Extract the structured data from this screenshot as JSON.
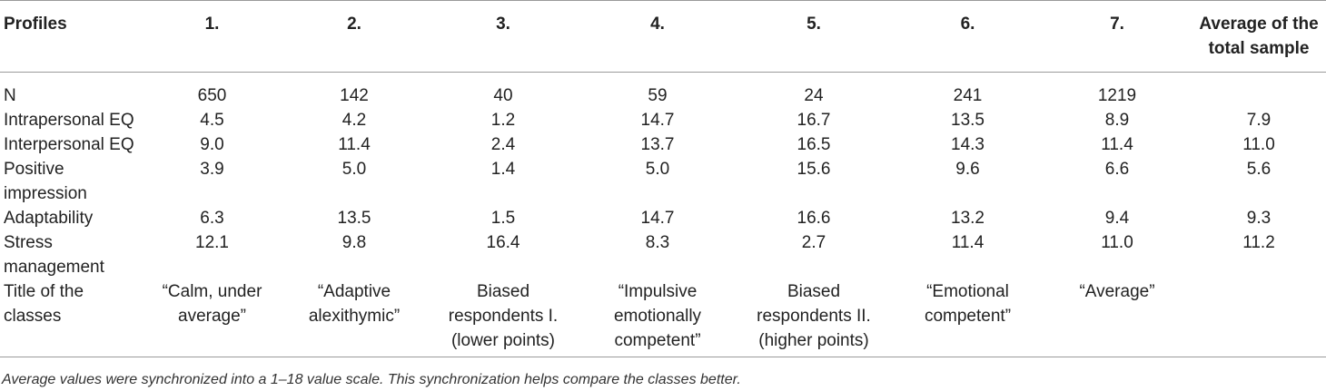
{
  "table": {
    "headers": [
      "Profiles",
      "1.",
      "2.",
      "3.",
      "4.",
      "5.",
      "6.",
      "7.",
      "Average of the total sample"
    ],
    "rows": [
      {
        "label": "N",
        "cells": [
          "650",
          "142",
          "40",
          "59",
          "24",
          "241",
          "1219",
          ""
        ]
      },
      {
        "label": "Intrapersonal EQ",
        "cells": [
          "4.5",
          "4.2",
          "1.2",
          "14.7",
          "16.7",
          "13.5",
          "8.9",
          "7.9"
        ]
      },
      {
        "label": "Interpersonal EQ",
        "cells": [
          "9.0",
          "11.4",
          "2.4",
          "13.7",
          "16.5",
          "14.3",
          "11.4",
          "11.0"
        ]
      },
      {
        "label": "Positive impression",
        "cells": [
          "3.9",
          "5.0",
          "1.4",
          "5.0",
          "15.6",
          "9.6",
          "6.6",
          "5.6"
        ]
      },
      {
        "label": "Adaptability",
        "cells": [
          "6.3",
          "13.5",
          "1.5",
          "14.7",
          "16.6",
          "13.2",
          "9.4",
          "9.3"
        ]
      },
      {
        "label": "Stress management",
        "cells": [
          "12.1",
          "9.8",
          "16.4",
          "8.3",
          "2.7",
          "11.4",
          "11.0",
          "11.2"
        ]
      },
      {
        "label": "Title of the classes",
        "cells": [
          "“Calm, under average”",
          "“Adaptive alexithymic”",
          "Biased respondents I. (lower points)",
          "“Impulsive emotionally competent”",
          "Biased respondents II. (higher points)",
          "“Emotional competent”",
          "“Average”",
          ""
        ]
      }
    ]
  },
  "footnote": "Average values were synchronized into a 1–18 value scale. This synchronization helps compare the classes better."
}
